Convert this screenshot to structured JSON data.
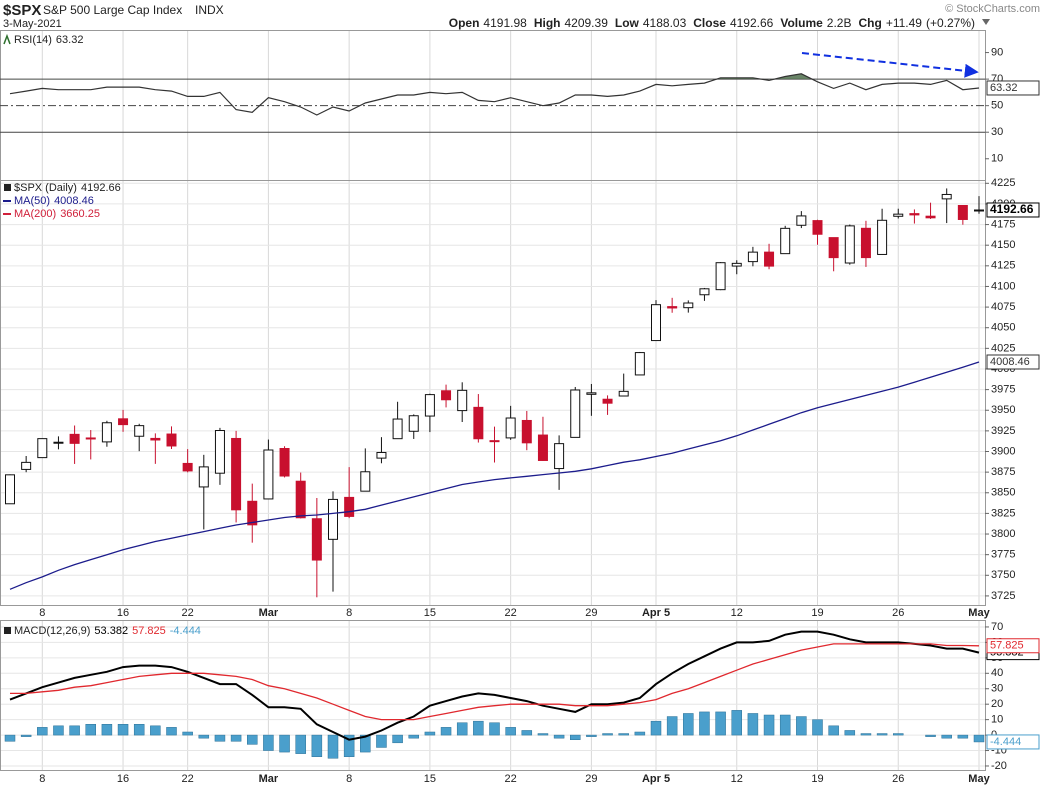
{
  "header": {
    "symbol": "$SPX",
    "name": "S&P 500 Large Cap Index",
    "exchange": "INDX",
    "date": "3-May-2021",
    "watermark": "© StockCharts.com",
    "stats": {
      "labels": [
        "Open",
        "High",
        "Low",
        "Close",
        "Volume",
        "Chg"
      ],
      "volume": 2200000000,
      "volume_label": "2.2B",
      "change": 11.49,
      "change_label": "+11.49",
      "change_pct": 0.27,
      "change_pct_label": "(+0.27%)"
    }
  },
  "chart_data": [
    {
      "type": "candlestick",
      "name": "$SPX (Daily)",
      "categories": [
        null,
        null,
        "8",
        null,
        null,
        null,
        null,
        "16",
        null,
        null,
        null,
        "22",
        null,
        null,
        null,
        null,
        "Mar",
        null,
        null,
        null,
        null,
        "8",
        null,
        null,
        null,
        null,
        "15",
        null,
        null,
        null,
        null,
        "22",
        null,
        null,
        null,
        null,
        "29",
        null,
        null,
        null,
        "Apr 5",
        null,
        null,
        null,
        null,
        "12",
        null,
        null,
        null,
        null,
        "19",
        null,
        null,
        null,
        null,
        "26",
        null,
        null,
        null,
        null,
        "May"
      ],
      "open": [
        3836.66,
        3878.3,
        3892.59,
        3910.49,
        3920.78,
        3916.4,
        3911.65,
        3939.61,
        3918.5,
        3915.86,
        3921.16,
        3885.55,
        3857.07,
        3873.71,
        3915.8,
        3839.66,
        3842.51,
        3903.64,
        3863.99,
        3818.53,
        3793.58,
        3844.39,
        3851.93,
        3891.99,
        3915.54,
        3924.52,
        3942.96,
        3973.59,
        3949.57,
        3953.5,
        3913.14,
        3916.48,
        3937.6,
        3919.93,
        3879.34,
        3917.12,
        3969.31,
        3963.34,
        3967.25,
        3992.78,
        4034.44,
        4075.57,
        4074.29,
        4089.95,
        4096.11,
        4124.71,
        4130.1,
        4141.58,
        4139.76,
        4174.14,
        4179.8,
        4159.18,
        4128.42,
        4170.46,
        4138.78,
        4185.03,
        4188.25,
        4185.14,
        4206.14,
        4198.1,
        4191.98
      ],
      "high": [
        3872.36,
        3894.56,
        3915.77,
        3918.35,
        3931.5,
        3925.99,
        3937.23,
        3950.43,
        3933.61,
        3921.98,
        3930.41,
        3902.92,
        3895.98,
        3928.65,
        3925.02,
        3861.08,
        3914.5,
        3906.41,
        3874.47,
        3843.67,
        3851.69,
        3881.06,
        3903.76,
        3917.35,
        3960.27,
        3944.99,
        3970.08,
        3981.04,
        3983.87,
        3969.62,
        3930.12,
        3955.31,
        3949.13,
        3942.08,
        3919.54,
        3978.19,
        3981.83,
        3968.01,
        3994.41,
        4020.63,
        4083.42,
        4086.23,
        4083.13,
        4098.19,
        4129.48,
        4131.76,
        4148,
        4151.69,
        4173.49,
        4191.31,
        4180.81,
        4159.18,
        4175.02,
        4179.57,
        4194.17,
        4194.19,
        4193.35,
        4201.53,
        4218.78,
        4198.1,
        4209.39
      ],
      "low": [
        3836.66,
        3874.93,
        3892.59,
        3902.64,
        3884.94,
        3890.39,
        3905.78,
        3923.85,
        3900.43,
        3885.03,
        3903.07,
        3874.71,
        3805.59,
        3859.6,
        3814.04,
        3789.54,
        3842.51,
        3868.57,
        3818.86,
        3723.34,
        3730.19,
        3819.25,
        3851.93,
        3885.73,
        3915.54,
        3915.21,
        3923.54,
        3953.44,
        3935.74,
        3910.86,
        3886.75,
        3914.16,
        3901.57,
        3888.68,
        3853.5,
        3917.12,
        3943.25,
        3944.35,
        3966.98,
        3992.78,
        4034.44,
        4068.14,
        4068.31,
        4082.54,
        4095.51,
        4114.82,
        4124.43,
        4120.87,
        4139.76,
        4170.75,
        4150.47,
        4118.38,
        4126.35,
        4123.69,
        4138.78,
        4182.36,
        4176.22,
        4181.78,
        4176.81,
        4174.85,
        4188.03
      ],
      "close": [
        3871.74,
        3886.83,
        3915.59,
        3911.23,
        3909.88,
        3916.38,
        3934.83,
        3932.59,
        3931.33,
        3913.97,
        3906.71,
        3876.5,
        3881.37,
        3925.43,
        3829.34,
        3811.15,
        3901.82,
        3870.29,
        3819.72,
        3768.47,
        3841.94,
        3821.35,
        3875.44,
        3898.81,
        3939.34,
        3943.34,
        3968.94,
        3962.71,
        3974.12,
        3915.46,
        3913.1,
        3940.59,
        3910.52,
        3889.14,
        3909.52,
        3974.54,
        3971.09,
        3958.55,
        3972.89,
        4019.87,
        4077.91,
        4073.94,
        4079.95,
        4097.17,
        4128.8,
        4127.99,
        4141.59,
        4124.66,
        4170.42,
        4185.47,
        4163.26,
        4134.94,
        4173.42,
        4134.98,
        4180.17,
        4187.62,
        4186.72,
        4183.18,
        4211.47,
        4181.17,
        4192.66
      ],
      "up_color": "#ffffff",
      "down_color": "#c8102e",
      "ylim": [
        3714,
        4229
      ],
      "yticks": [
        3725,
        3750,
        3775,
        3800,
        3825,
        3850,
        3875,
        3900,
        3925,
        3950,
        3975,
        4000,
        4025,
        4050,
        4075,
        4100,
        4125,
        4150,
        4175,
        4200,
        4225
      ],
      "grid": true,
      "overlays": [
        {
          "name": "MA(50)",
          "color": "#1c1c8c",
          "values": [
            3733,
            3741,
            3748,
            3756,
            3763,
            3769,
            3775,
            3781,
            3786,
            3791,
            3795,
            3799,
            3803,
            3807,
            3811,
            3814,
            3817,
            3820,
            3822,
            3823,
            3825,
            3827,
            3830,
            3835,
            3840,
            3845,
            3850,
            3855,
            3860,
            3863,
            3866,
            3868,
            3870,
            3872,
            3874,
            3876,
            3879,
            3883,
            3887,
            3890,
            3894,
            3898,
            3903,
            3908,
            3913,
            3919,
            3926,
            3933,
            3940,
            3947,
            3953,
            3958,
            3963,
            3968,
            3973,
            3978,
            3984,
            3990,
            3996,
            4002,
            4008.46
          ]
        },
        {
          "name": "MA(200)",
          "color": "#d0203a",
          "value": 3660.25
        }
      ]
    },
    {
      "type": "line",
      "name": "RSI(14)",
      "color": "#333333",
      "fill_color": "#4f6f4c",
      "values": [
        59,
        61,
        63,
        62,
        62,
        62,
        64,
        64,
        64,
        62,
        61,
        57,
        57,
        60,
        47,
        45,
        56,
        53,
        49,
        43,
        49,
        46,
        52,
        55,
        58,
        58,
        60,
        59,
        60,
        54,
        53,
        56,
        53,
        50,
        52,
        58,
        58,
        57,
        58,
        61,
        66,
        65,
        66,
        67,
        71,
        71,
        71,
        69,
        72,
        74,
        68,
        63,
        67,
        62,
        66,
        67,
        67,
        66,
        69,
        62,
        63.32
      ],
      "ylim": [
        -6,
        107
      ],
      "yticks": [
        90,
        70,
        50,
        30,
        10
      ],
      "levels": [
        {
          "value": 70,
          "style": "solid"
        },
        {
          "value": 50,
          "style": "dashdot"
        },
        {
          "value": 30,
          "style": "solid"
        }
      ]
    },
    {
      "type": "macd",
      "name": "MACD(12,26,9)",
      "series": [
        {
          "color": "#000000",
          "kind": "line",
          "values": [
            23,
            27,
            31,
            34,
            37,
            39,
            41,
            44,
            45,
            45,
            44,
            41,
            37,
            33,
            33,
            26,
            18,
            18,
            17,
            7,
            2,
            -3,
            -1,
            3,
            8,
            12,
            19,
            22,
            25,
            27,
            26,
            24,
            22,
            19,
            17,
            15,
            20,
            20,
            21,
            24,
            33,
            40,
            46,
            51,
            56,
            60,
            60,
            61,
            65,
            67,
            67,
            65,
            62,
            60,
            60,
            60,
            59,
            58,
            56,
            56,
            53.382
          ]
        },
        {
          "color": "#e0282e",
          "kind": "line",
          "values": [
            27,
            27,
            28,
            29,
            31,
            32,
            34,
            36,
            38,
            39,
            40,
            40,
            40,
            39,
            38,
            36,
            32,
            30,
            27,
            24,
            20,
            16,
            12,
            10,
            10,
            10,
            12,
            14,
            16,
            18,
            19,
            20,
            20,
            20,
            20,
            19,
            19,
            19,
            20,
            21,
            23,
            27,
            30,
            34,
            38,
            42,
            46,
            49,
            52,
            55,
            57,
            59,
            59,
            59,
            59,
            59,
            59,
            59,
            58,
            58,
            57.825
          ]
        },
        {
          "color": "#4a9fcc",
          "kind": "bar",
          "values": [
            -4,
            -1,
            5,
            6,
            6,
            7,
            7,
            7,
            7,
            6,
            5,
            2,
            -2,
            -4,
            -4,
            -6,
            -10,
            -11,
            -12,
            -14,
            -15,
            -14,
            -11,
            -8,
            -5,
            -2,
            2,
            5,
            8,
            9,
            8,
            5,
            3,
            1,
            -2,
            -3,
            -1,
            1,
            1,
            2,
            9,
            12,
            14,
            15,
            15,
            16,
            14,
            13,
            13,
            12,
            10,
            6,
            3,
            1,
            1,
            1,
            0,
            -1,
            -2,
            -2,
            -4.444
          ]
        }
      ],
      "ylim": [
        -22.6,
        74.5
      ],
      "yticks": [
        70,
        60,
        50,
        40,
        30,
        20,
        10,
        0,
        -10,
        -20
      ],
      "grid": true
    }
  ]
}
